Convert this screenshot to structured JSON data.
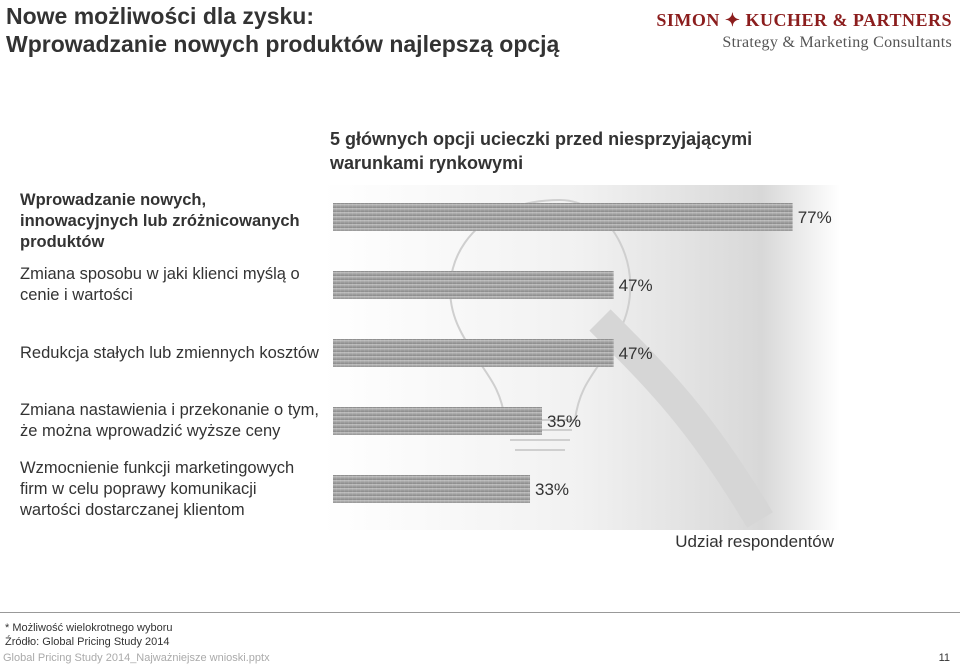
{
  "header": {
    "title": [
      "Nowe możliwości dla zysku:",
      "Wprowadzanie nowych produktów najlepszą opcją"
    ],
    "logo": "SIMON ✦ KUCHER & PARTNERS",
    "logo_tagline": "Strategy & Marketing Consultants"
  },
  "chart_data": {
    "type": "bar",
    "orientation": "horizontal",
    "title": "5 głównych opcji ucieczki przed niesprzyjającymi warunkami rynkowymi",
    "categories": [
      "Wprowadzanie nowych, innowacyjnych lub zróżnicowanych produktów",
      "Zmiana sposobu w jaki klienci myślą o cenie i wartości",
      "Redukcja stałych lub zmiennych kosztów",
      "Zmiana nastawienia i przekonanie o tym, że można wprowadzić wyższe ceny",
      "Wzmocnienie funkcji marketingowych firm w celu poprawy komunikacji wartości dostarczanej klientom"
    ],
    "values": [
      77,
      47,
      47,
      35,
      33
    ],
    "value_labels": [
      "77%",
      "47%",
      "47%",
      "35%",
      "33%"
    ],
    "color": "#9a9a9a",
    "xlim": [
      0,
      100
    ],
    "x_label": "Udział respondentów"
  },
  "footnotes": [
    "* Możliwość wielokrotnego wyboru",
    "Źródło: Global Pricing Study 2014"
  ],
  "footer": {
    "file": "Global Pricing Study 2014_Najważniejsze wnioski.pptx",
    "page": "11"
  }
}
